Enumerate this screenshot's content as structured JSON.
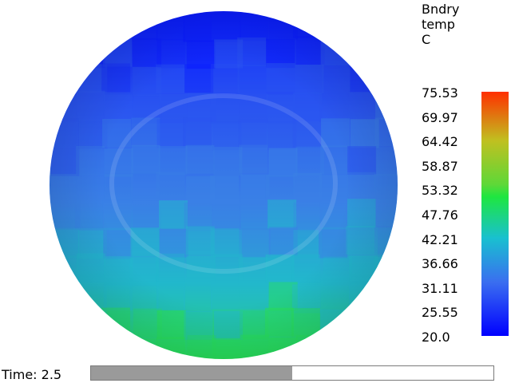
{
  "legend": {
    "title_lines": [
      "Bndry",
      "temp",
      "C"
    ],
    "ticks": [
      "75.53",
      "69.97",
      "64.42",
      "58.87",
      "53.32",
      "47.76",
      "42.21",
      "36.66",
      "31.11",
      "25.55",
      "20.0"
    ],
    "min": 20.0,
    "max": 75.53,
    "colors": {
      "min": "#0000ff",
      "low": "#3a6ef0",
      "mid": "#19c0d0",
      "midhigh": "#1ee640",
      "high": "#c0c020",
      "max": "#ff3000"
    }
  },
  "time": {
    "label": "Time: 2.5",
    "progress": 0.5
  },
  "sphere": {
    "colors": {
      "top": "#0a1cff",
      "upper": "#2a55f0",
      "middle": "#3a80e6",
      "lower": "#22b8cc",
      "bottom": "#28e05a"
    }
  }
}
